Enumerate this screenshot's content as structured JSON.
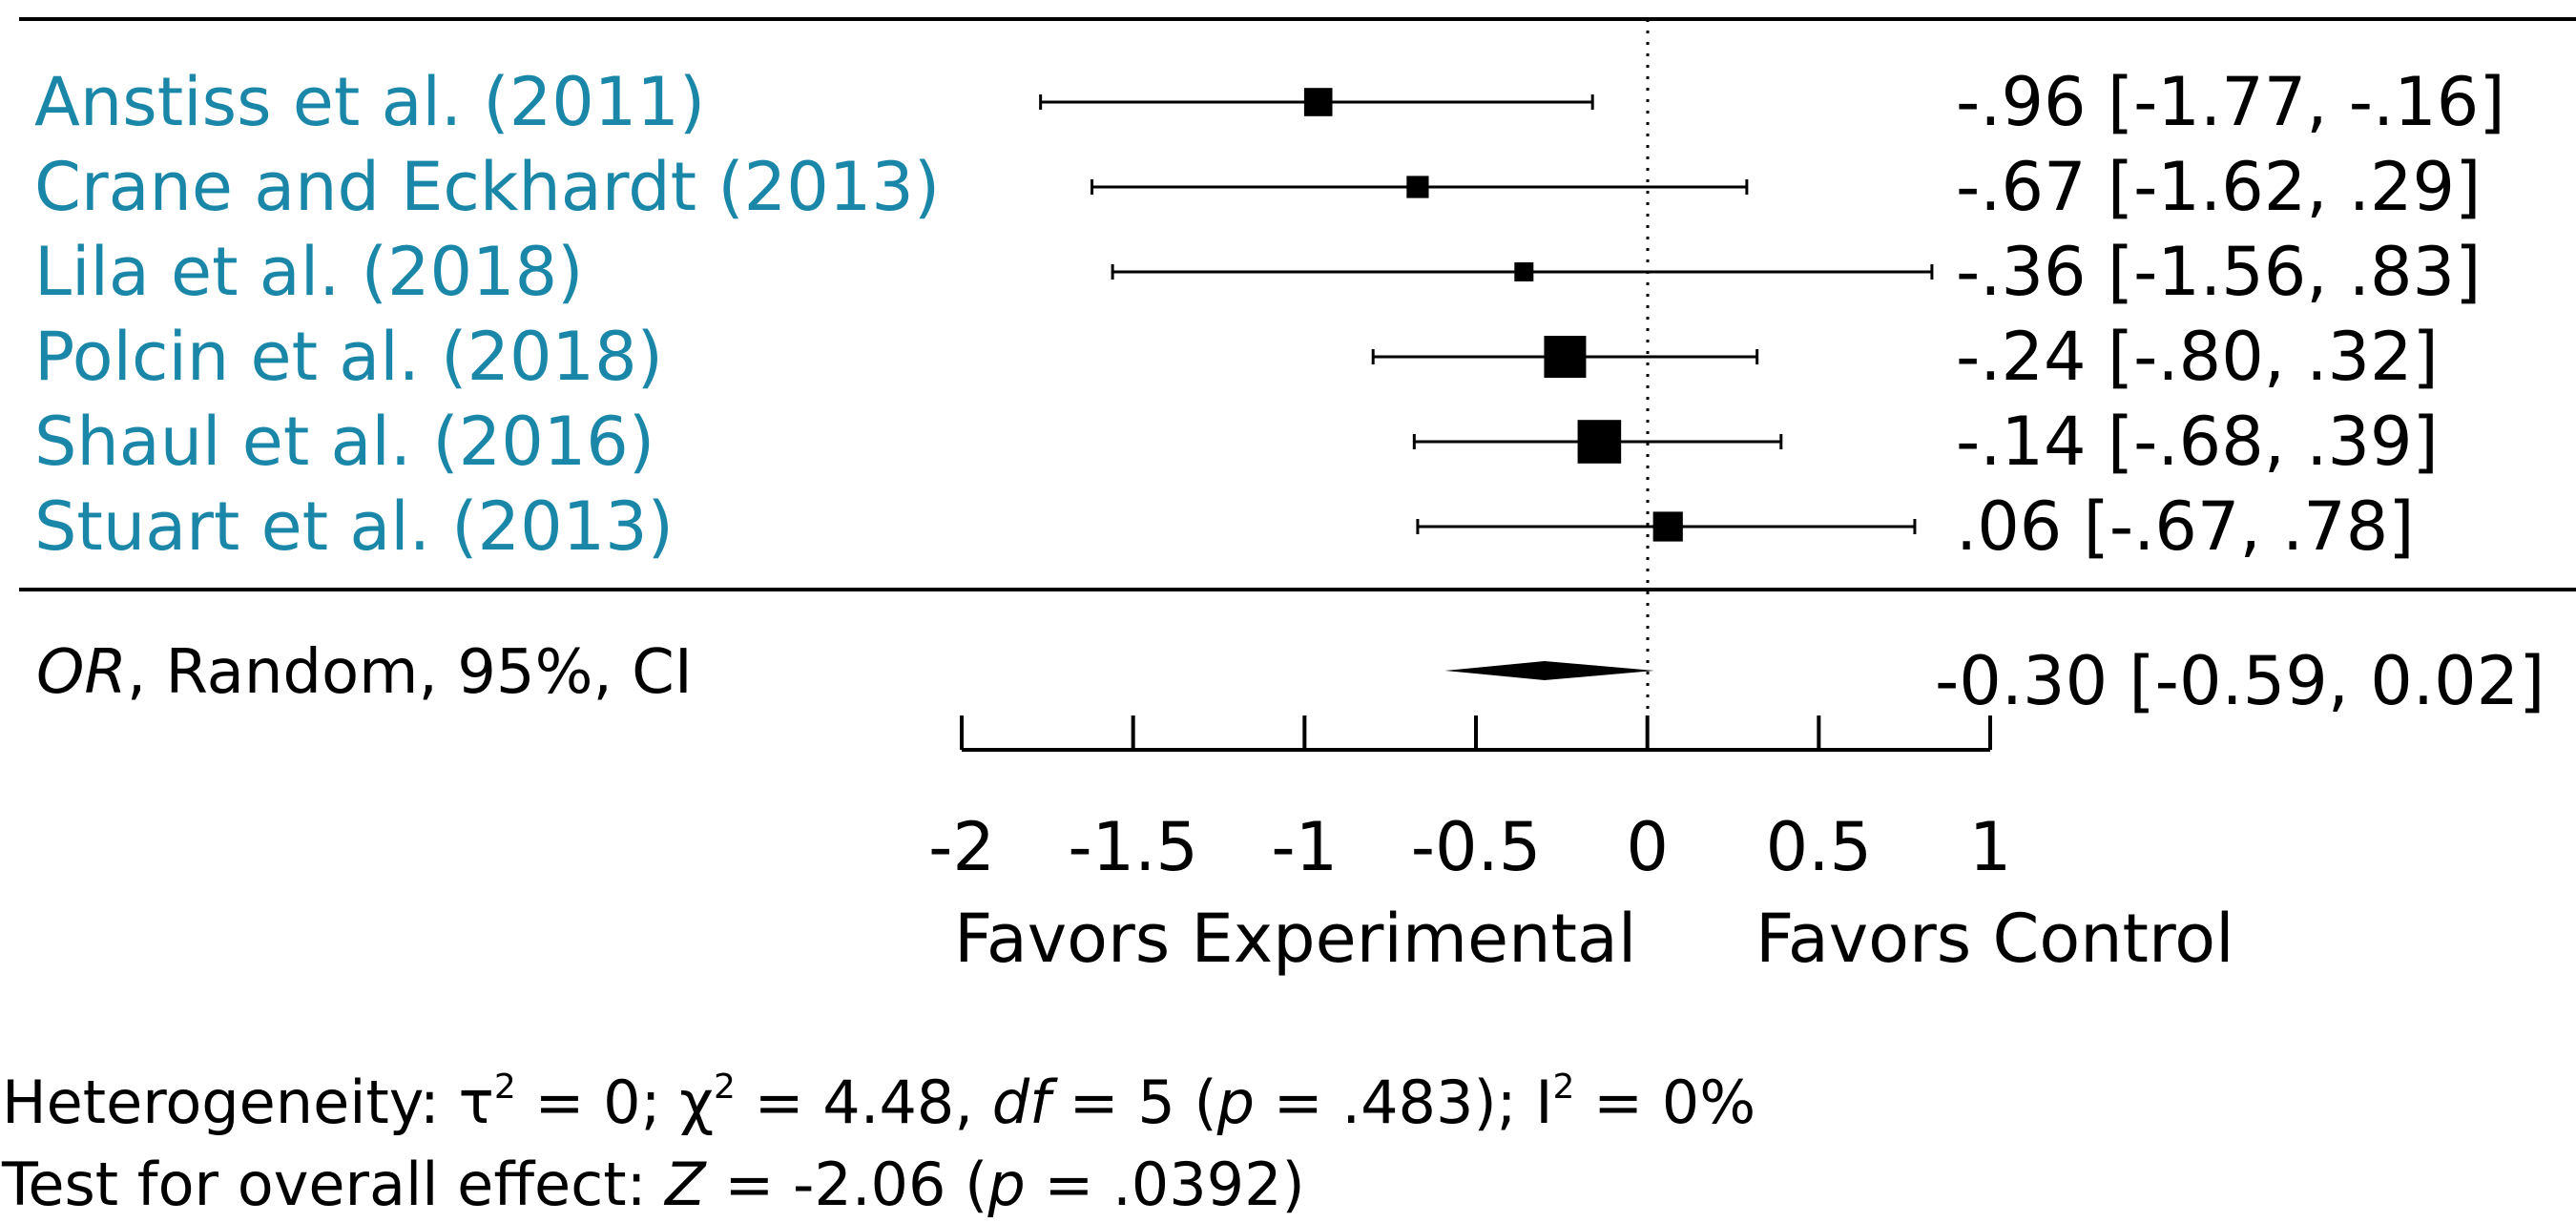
{
  "chart_data": {
    "type": "forest",
    "studies": [
      {
        "label": "Anstiss et al. (2011)",
        "estimate": -0.96,
        "ci": [
          -1.77,
          -0.16
        ],
        "ci_text": "-.96 [-1.77, -.16]",
        "weight": 0.55
      },
      {
        "label": "Crane and Eckhardt (2013)",
        "estimate": -0.67,
        "ci": [
          -1.62,
          0.29
        ],
        "ci_text": "-.67 [-1.62, .29]",
        "weight": 0.35
      },
      {
        "label": "Lila et al. (2018)",
        "estimate": -0.36,
        "ci": [
          -1.56,
          0.83
        ],
        "ci_text": "-.36 [-1.56, .83]",
        "weight": 0.25
      },
      {
        "label": "Polcin et al. (2018)",
        "estimate": -0.24,
        "ci": [
          -0.8,
          0.32
        ],
        "ci_text": "-.24 [-.80, .32]",
        "weight": 1.0
      },
      {
        "label": "Shaul et al. (2016)",
        "estimate": -0.14,
        "ci": [
          -0.68,
          0.39
        ],
        "ci_text": "-.14 [-.68, .39]",
        "weight": 1.05
      },
      {
        "label": "Stuart et al. (2013)",
        "estimate": 0.06,
        "ci": [
          -0.67,
          0.78
        ],
        "ci_text": ".06 [-.67, .78]",
        "weight": 0.6
      }
    ],
    "pooled": {
      "label_italic": "OR",
      "label_rest": ", Random, 95%, CI",
      "estimate": -0.3,
      "ci": [
        -0.59,
        0.02
      ],
      "ci_text": "-0.30 [-0.59, 0.02]"
    },
    "x_axis": {
      "range": [
        -2,
        1
      ],
      "ticks": [
        -2,
        -1.5,
        -1,
        -0.5,
        0,
        0.5,
        1
      ],
      "tick_labels": [
        "-2",
        "-1.5",
        "-1",
        "-0.5",
        "0",
        "0.5",
        "1"
      ]
    },
    "favors_left": "Favors Experimental",
    "favors_right": "Favors Control",
    "heterogeneity": {
      "prefix": "Heterogeneity: ",
      "tau": "τ",
      "sup2": "2",
      "tau_value": " = 0; ",
      "chi": "χ",
      "chi_value": " = 4.48, ",
      "df_label": "df",
      "df_value": " = 5 (",
      "p_label": "p",
      "p_value": " = .483); I",
      "i2_value": " = 0%"
    },
    "overall_effect": {
      "prefix": "Test for overall effect: ",
      "z_label": "Z",
      "z_value": " = -2.06 (",
      "p_label": "p",
      "p_value": " = .0392)"
    }
  }
}
